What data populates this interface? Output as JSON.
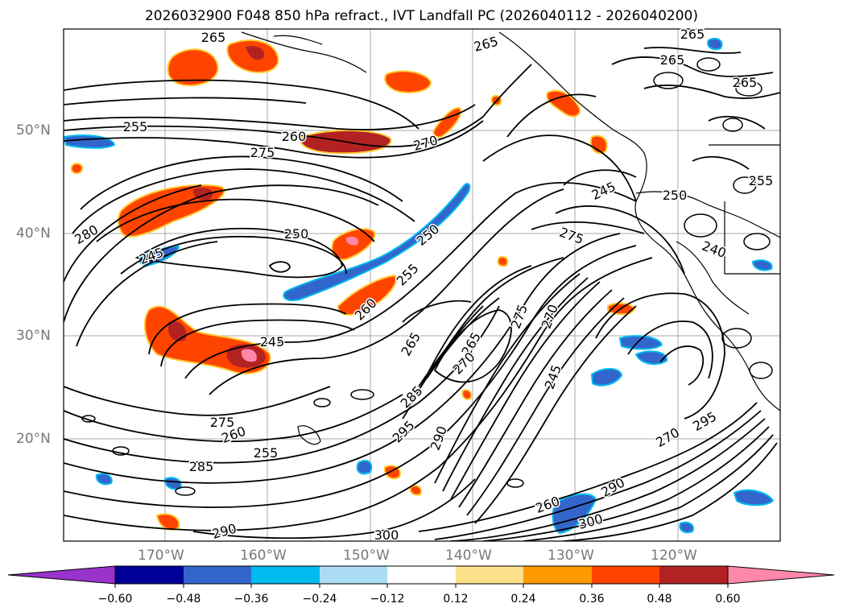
{
  "title": "2026032900 F048 850 hPa refract., IVT Landfall PC (2026040112 - 2026040200)",
  "map": {
    "lat_labels": [
      "50°N",
      "40°N",
      "30°N",
      "20°N"
    ],
    "lon_labels": [
      "170°W",
      "160°W",
      "150°W",
      "140°W",
      "130°W",
      "120°W"
    ],
    "contour_labels": [
      "265",
      "265",
      "265",
      "265",
      "265",
      "255",
      "260",
      "270",
      "275",
      "250",
      "280",
      "250",
      "245",
      "250",
      "245",
      "275",
      "255",
      "260",
      "245",
      "265",
      "275",
      "270",
      "265",
      "270",
      "245",
      "285",
      "295",
      "290",
      "275",
      "260",
      "255",
      "285",
      "290",
      "300",
      "260",
      "300",
      "290",
      "270",
      "295",
      "240",
      "255"
    ],
    "colors": {
      "contour_line": "#000000",
      "grid": "#aaaaaa",
      "land_coast": "#000000"
    }
  },
  "colorbar": {
    "ticks": [
      "−0.60",
      "−0.48",
      "−0.36",
      "−0.24",
      "−0.12",
      "0.12",
      "0.24",
      "0.36",
      "0.48",
      "0.60"
    ],
    "colors": [
      "#9933cc",
      "#000099",
      "#3366cc",
      "#00bbee",
      "#aaddf5",
      "#ffffff",
      "#fce08a",
      "#ff9900",
      "#ff4400",
      "#b22222",
      "#ff88aa"
    ]
  }
}
